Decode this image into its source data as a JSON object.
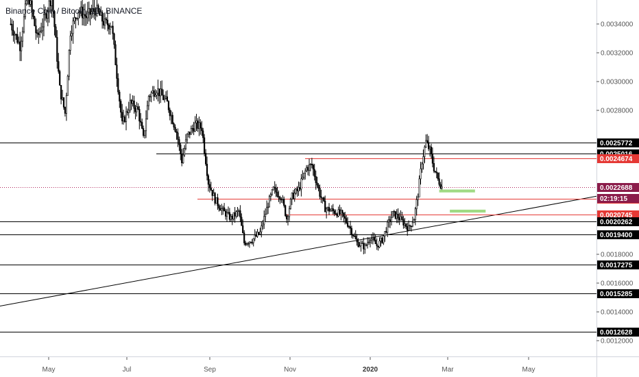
{
  "header": {
    "symbol_title": "Binance Coin / Bitcoin, 1D, BINANCE"
  },
  "colors": {
    "background": "#ffffff",
    "candle": "#000000",
    "horizontal_black": "#000000",
    "horizontal_red": "#e53935",
    "price_line": "#b0235a",
    "green_zone": "#8fd36f",
    "tag_black": "#000000",
    "tag_red": "#e53935",
    "tag_price": "#8b1c4a",
    "axis_text": "#555555"
  },
  "chart_data": {
    "type": "candlestick",
    "title": "Binance Coin / Bitcoin, 1D, BINANCE",
    "price_axis_ticks": [
      "0.0034000",
      "0.0032000",
      "0.0030000",
      "0.0028000",
      "0.0018000",
      "0.0016000",
      "0.0014000",
      "0.0012000"
    ],
    "price_axis_tick_values": [
      0.0034,
      0.0032,
      0.003,
      0.0028,
      0.0018,
      0.0016,
      0.0014,
      0.0012
    ],
    "time_axis_ticks": [
      {
        "label": "May",
        "bold": false
      },
      {
        "label": "Jul",
        "bold": false
      },
      {
        "label": "Sep",
        "bold": false
      },
      {
        "label": "Nov",
        "bold": false
      },
      {
        "label": "2020",
        "bold": true
      },
      {
        "label": "Mar",
        "bold": false
      },
      {
        "label": "May",
        "bold": false
      }
    ],
    "horizontal_levels": [
      {
        "value": 0.0025772,
        "label": "0.0025772",
        "color": "black"
      },
      {
        "value": 0.0025016,
        "label": "0.0025016",
        "color": "black"
      },
      {
        "value": 0.0024674,
        "label": "0.0024674",
        "color": "red"
      },
      {
        "value": 0.0021841,
        "label": "0.0021841",
        "color": "red"
      },
      {
        "value": 0.0020745,
        "label": "0.0020745",
        "color": "red"
      },
      {
        "value": 0.0020262,
        "label": "0.0020262",
        "color": "black"
      },
      {
        "value": 0.00194,
        "label": "0.0019400",
        "color": "black"
      },
      {
        "value": 0.0017275,
        "label": "0.0017275",
        "color": "black"
      },
      {
        "value": 0.0015285,
        "label": "0.0015285",
        "color": "black"
      },
      {
        "value": 0.0012628,
        "label": "0.0012628",
        "color": "black"
      }
    ],
    "current_price": {
      "value": 0.0022688,
      "label": "0.0022688",
      "countdown": "02:19:15"
    },
    "trendline": {
      "from": {
        "date": "2019-03-10",
        "price": 0.00141
      },
      "to": {
        "date": "2020-05-31",
        "price": 0.00217
      }
    },
    "green_zones": [
      {
        "date_from": "2020-02-22",
        "date_to": "2020-03-20",
        "price_low": 0.00223,
        "price_high": 0.00225
      },
      {
        "date_from": "2020-03-01",
        "date_to": "2020-03-28",
        "price_low": 0.00209,
        "price_high": 0.00211
      }
    ],
    "price_path": [
      {
        "date": "2019-04-05",
        "price": 0.0034
      },
      {
        "date": "2019-04-12",
        "price": 0.00325
      },
      {
        "date": "2019-04-18",
        "price": 0.00362
      },
      {
        "date": "2019-04-25",
        "price": 0.0033
      },
      {
        "date": "2019-05-01",
        "price": 0.00345
      },
      {
        "date": "2019-05-06",
        "price": 0.0036
      },
      {
        "date": "2019-05-12",
        "price": 0.00295
      },
      {
        "date": "2019-05-16",
        "price": 0.00278
      },
      {
        "date": "2019-05-20",
        "price": 0.00335
      },
      {
        "date": "2019-05-26",
        "price": 0.0035
      },
      {
        "date": "2019-06-01",
        "price": 0.00345
      },
      {
        "date": "2019-06-08",
        "price": 0.0035
      },
      {
        "date": "2019-06-15",
        "price": 0.0034
      },
      {
        "date": "2019-06-20",
        "price": 0.0034
      },
      {
        "date": "2019-06-24",
        "price": 0.00305
      },
      {
        "date": "2019-06-28",
        "price": 0.0027
      },
      {
        "date": "2019-07-04",
        "price": 0.00285
      },
      {
        "date": "2019-07-10",
        "price": 0.0028
      },
      {
        "date": "2019-07-14",
        "price": 0.0026
      },
      {
        "date": "2019-07-18",
        "price": 0.0029
      },
      {
        "date": "2019-07-24",
        "price": 0.00295
      },
      {
        "date": "2019-08-01",
        "price": 0.00285
      },
      {
        "date": "2019-08-08",
        "price": 0.00265
      },
      {
        "date": "2019-08-12",
        "price": 0.00245
      },
      {
        "date": "2019-08-16",
        "price": 0.00262
      },
      {
        "date": "2019-08-22",
        "price": 0.0027
      },
      {
        "date": "2019-08-27",
        "price": 0.00268
      },
      {
        "date": "2019-09-01",
        "price": 0.0023
      },
      {
        "date": "2019-09-06",
        "price": 0.00218
      },
      {
        "date": "2019-09-12",
        "price": 0.0021
      },
      {
        "date": "2019-09-18",
        "price": 0.00205
      },
      {
        "date": "2019-09-24",
        "price": 0.0021
      },
      {
        "date": "2019-09-28",
        "price": 0.00188
      },
      {
        "date": "2019-10-04",
        "price": 0.0019
      },
      {
        "date": "2019-10-10",
        "price": 0.00195
      },
      {
        "date": "2019-10-16",
        "price": 0.00215
      },
      {
        "date": "2019-10-20",
        "price": 0.00225
      },
      {
        "date": "2019-10-26",
        "price": 0.0022
      },
      {
        "date": "2019-10-30",
        "price": 0.00205
      },
      {
        "date": "2019-11-03",
        "price": 0.0022
      },
      {
        "date": "2019-11-08",
        "price": 0.00225
      },
      {
        "date": "2019-11-14",
        "price": 0.0024
      },
      {
        "date": "2019-11-18",
        "price": 0.00242
      },
      {
        "date": "2019-11-24",
        "price": 0.00222
      },
      {
        "date": "2019-11-28",
        "price": 0.00212
      },
      {
        "date": "2019-12-04",
        "price": 0.0021
      },
      {
        "date": "2019-12-10",
        "price": 0.00208
      },
      {
        "date": "2019-12-16",
        "price": 0.002
      },
      {
        "date": "2019-12-22",
        "price": 0.00188
      },
      {
        "date": "2019-12-28",
        "price": 0.00185
      },
      {
        "date": "2020-01-01",
        "price": 0.00192
      },
      {
        "date": "2020-01-06",
        "price": 0.00186
      },
      {
        "date": "2020-01-10",
        "price": 0.0019
      },
      {
        "date": "2020-01-14",
        "price": 0.002
      },
      {
        "date": "2020-01-18",
        "price": 0.00208
      },
      {
        "date": "2020-01-22",
        "price": 0.00206
      },
      {
        "date": "2020-01-26",
        "price": 0.00202
      },
      {
        "date": "2020-01-30",
        "price": 0.00198
      },
      {
        "date": "2020-02-03",
        "price": 0.00205
      },
      {
        "date": "2020-02-06",
        "price": 0.00222
      },
      {
        "date": "2020-02-09",
        "price": 0.00245
      },
      {
        "date": "2020-02-12",
        "price": 0.00258
      },
      {
        "date": "2020-02-15",
        "price": 0.00252
      },
      {
        "date": "2020-02-18",
        "price": 0.0024
      },
      {
        "date": "2020-02-21",
        "price": 0.00232
      },
      {
        "date": "2020-02-24",
        "price": 0.00227
      }
    ]
  }
}
